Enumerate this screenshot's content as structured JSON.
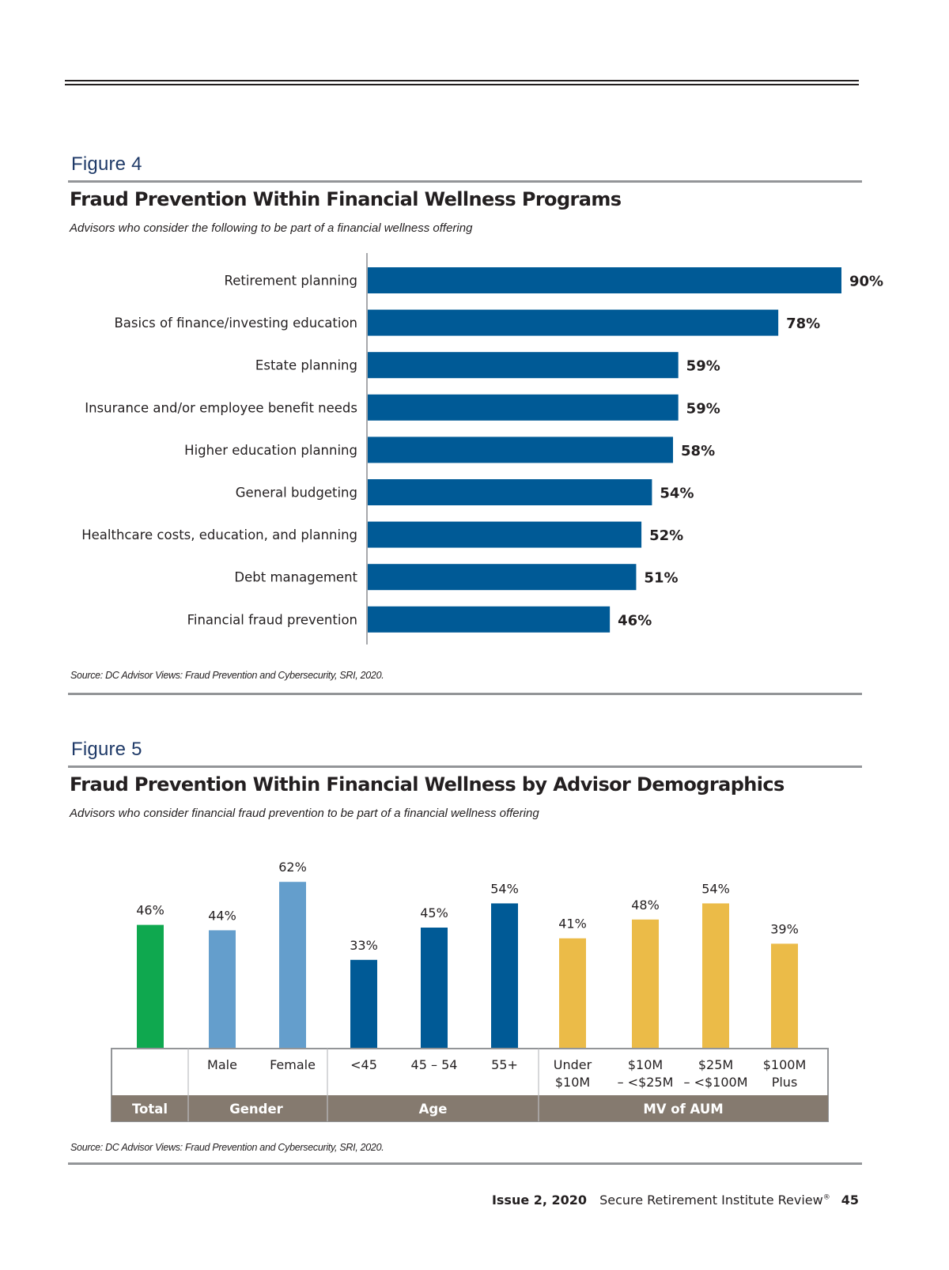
{
  "figure4": {
    "label": "Figure 4",
    "title": "Fraud Prevention Within Financial Wellness Programs",
    "subtitle": "Advisors who consider the following to be part of a financial wellness offering",
    "source": "Source: DC Advisor Views: Fraud Prevention and Cybersecurity, SRI, 2020."
  },
  "figure5": {
    "label": "Figure 5",
    "title": "Fraud Prevention Within Financial Wellness by Advisor Demographics",
    "subtitle": "Advisors who consider financial fraud prevention to be part of a financial wellness offering",
    "source": "Source: DC Advisor Views: Fraud Prevention and Cybersecurity, SRI, 2020."
  },
  "footer": {
    "issue": "Issue 2, 2020",
    "publication": "Secure Retirement Institute Review",
    "registered_mark": "®",
    "page_number": "45"
  },
  "chart_data": [
    {
      "type": "bar",
      "orientation": "horizontal",
      "title": "Fraud Prevention Within Financial Wellness Programs",
      "subtitle": "Advisors who consider the following to be part of a financial wellness offering",
      "xlabel": "",
      "ylabel": "",
      "xlim": [
        0,
        90
      ],
      "grid": false,
      "unit": "%",
      "color": "#005a96",
      "categories": [
        "Retirement planning",
        "Basics of finance/investing education",
        "Estate planning",
        "Insurance and/or employee benefit needs",
        "Higher education planning",
        "General budgeting",
        "Healthcare costs, education, and planning",
        "Debt management",
        "Financial fraud prevention"
      ],
      "values": [
        90,
        78,
        59,
        59,
        58,
        54,
        52,
        51,
        46
      ],
      "data_labels": [
        "90%",
        "78%",
        "59%",
        "59%",
        "58%",
        "54%",
        "52%",
        "51%",
        "46%"
      ]
    },
    {
      "type": "bar",
      "orientation": "vertical",
      "title": "Fraud Prevention Within Financial Wellness by Advisor Demographics",
      "subtitle": "Advisors who consider financial fraud prevention to be part of a financial wellness offering",
      "ylim": [
        0,
        62
      ],
      "grid": false,
      "unit": "%",
      "categories": [
        [
          "Total",
          ""
        ],
        [
          "Male"
        ],
        [
          "Female"
        ],
        [
          "<45"
        ],
        [
          "45 – 54"
        ],
        [
          "55+"
        ],
        [
          "Under",
          "$10M"
        ],
        [
          "$10M",
          "– <$25M"
        ],
        [
          "$25M",
          "– <$100M"
        ],
        [
          "$100M",
          "Plus"
        ]
      ],
      "values": [
        46,
        44,
        62,
        33,
        45,
        54,
        41,
        48,
        54,
        39
      ],
      "data_labels": [
        "46%",
        "44%",
        "62%",
        "33%",
        "45%",
        "54%",
        "41%",
        "48%",
        "54%",
        "39%"
      ],
      "groups": [
        {
          "name": "Total",
          "start": 0,
          "count": 1,
          "color": "#0fa84f"
        },
        {
          "name": "Gender",
          "start": 1,
          "count": 2,
          "color": "#649ecc"
        },
        {
          "name": "Age",
          "start": 3,
          "count": 3,
          "color": "#005a96"
        },
        {
          "name": "MV of AUM",
          "start": 6,
          "count": 4,
          "color": "#ebbb48"
        }
      ],
      "group_header_color": "#857a6f"
    }
  ]
}
